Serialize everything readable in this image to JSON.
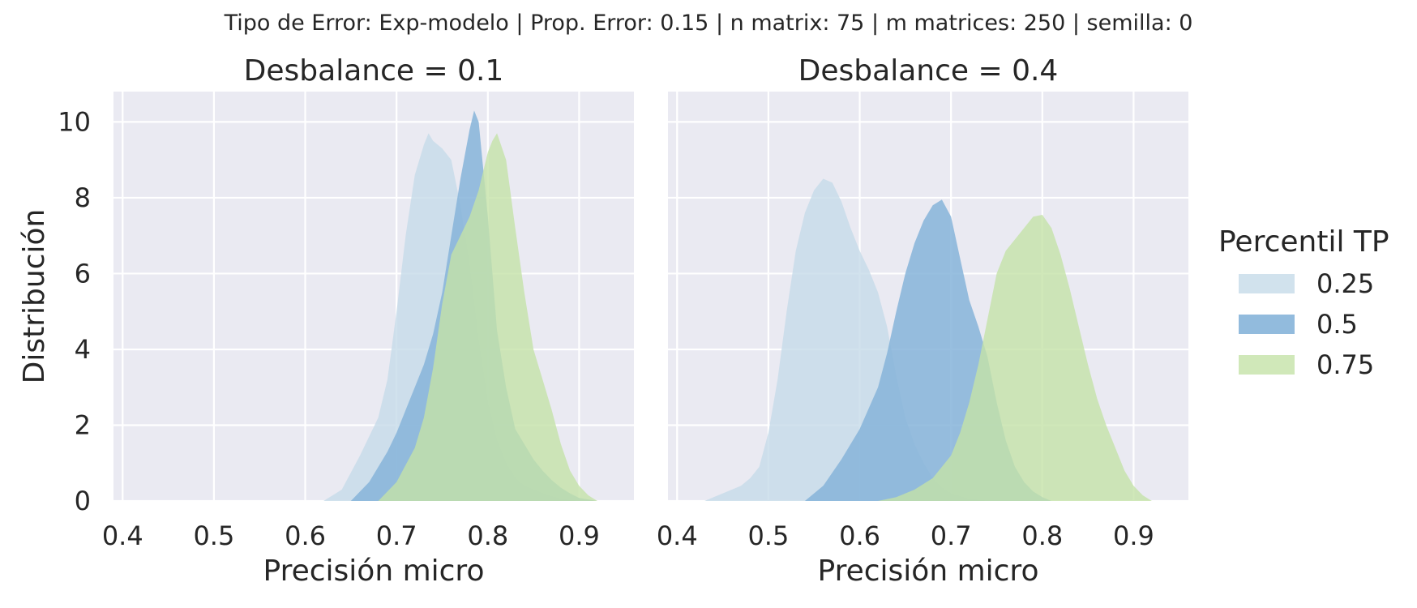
{
  "figure": {
    "suptitle": "Tipo de Error: Exp-modelo | Prop. Error: 0.15 | n matrix: 75 | m matrices: 250 | semilla: 0"
  },
  "legend": {
    "title": "Percentil TP",
    "entries": [
      "0.25",
      "0.5",
      "0.75"
    ]
  },
  "chart_data": [
    {
      "type": "area",
      "subtype": "kde",
      "title": "Desbalance = 0.1",
      "xlabel": "Precisión micro",
      "ylabel": "Distribución",
      "xlim": [
        0.39,
        0.96
      ],
      "ylim": [
        0,
        10.8
      ],
      "xticks": [
        0.4,
        0.5,
        0.6,
        0.7,
        0.8,
        0.9
      ],
      "xtick_labels": [
        "0.4",
        "0.5",
        "0.6",
        "0.7",
        "0.8",
        "0.9"
      ],
      "yticks": [
        0,
        2,
        4,
        6,
        8,
        10
      ],
      "ytick_labels": [
        "0",
        "2",
        "4",
        "6",
        "8",
        "10"
      ],
      "grid": true,
      "series": [
        {
          "name": "0.25",
          "color": "#c6dbe9",
          "x": [
            0.62,
            0.64,
            0.66,
            0.68,
            0.69,
            0.7,
            0.71,
            0.72,
            0.73,
            0.735,
            0.74,
            0.75,
            0.76,
            0.77,
            0.78,
            0.79,
            0.8,
            0.81,
            0.82,
            0.83,
            0.84,
            0.85,
            0.86,
            0.87,
            0.88,
            0.89,
            0.9
          ],
          "y": [
            0,
            0.3,
            1.2,
            2.2,
            3.2,
            5.0,
            7.0,
            8.6,
            9.4,
            9.7,
            9.5,
            9.3,
            9.0,
            7.8,
            6.2,
            4.2,
            2.6,
            1.6,
            1.0,
            0.6,
            0.4,
            0.3,
            0.2,
            0.12,
            0.06,
            0.02,
            0
          ]
        },
        {
          "name": "0.5",
          "color": "#86b4d9",
          "x": [
            0.65,
            0.67,
            0.69,
            0.7,
            0.71,
            0.72,
            0.73,
            0.74,
            0.75,
            0.76,
            0.77,
            0.78,
            0.785,
            0.79,
            0.8,
            0.81,
            0.82,
            0.83,
            0.84,
            0.85,
            0.86,
            0.87,
            0.88,
            0.89,
            0.9,
            0.92
          ],
          "y": [
            0,
            0.5,
            1.3,
            1.8,
            2.4,
            3.0,
            3.6,
            4.4,
            5.5,
            7.0,
            8.5,
            9.8,
            10.3,
            10.0,
            7.5,
            4.5,
            3.0,
            1.9,
            1.5,
            1.1,
            0.8,
            0.55,
            0.35,
            0.2,
            0.08,
            0
          ]
        },
        {
          "name": "0.75",
          "color": "#c4e2a8",
          "x": [
            0.68,
            0.7,
            0.72,
            0.73,
            0.74,
            0.75,
            0.76,
            0.77,
            0.78,
            0.79,
            0.8,
            0.805,
            0.81,
            0.82,
            0.83,
            0.84,
            0.85,
            0.86,
            0.87,
            0.88,
            0.89,
            0.9,
            0.91,
            0.92
          ],
          "y": [
            0,
            0.5,
            1.4,
            2.2,
            3.5,
            5.2,
            6.5,
            7.0,
            7.5,
            8.2,
            9.2,
            9.5,
            9.7,
            9.0,
            7.2,
            5.5,
            4.0,
            3.2,
            2.4,
            1.5,
            0.8,
            0.4,
            0.15,
            0
          ]
        }
      ]
    },
    {
      "type": "area",
      "subtype": "kde",
      "title": "Desbalance = 0.4",
      "xlabel": "Precisión micro",
      "ylabel": "",
      "xlim": [
        0.39,
        0.96
      ],
      "ylim": [
        0,
        10.8
      ],
      "xticks": [
        0.4,
        0.5,
        0.6,
        0.7,
        0.8,
        0.9
      ],
      "xtick_labels": [
        "0.4",
        "0.5",
        "0.6",
        "0.7",
        "0.8",
        "0.9"
      ],
      "yticks": [
        0,
        2,
        4,
        6,
        8,
        10
      ],
      "grid": true,
      "series": [
        {
          "name": "0.25",
          "color": "#c6dbe9",
          "x": [
            0.43,
            0.45,
            0.47,
            0.48,
            0.49,
            0.5,
            0.51,
            0.52,
            0.53,
            0.54,
            0.55,
            0.56,
            0.57,
            0.58,
            0.59,
            0.6,
            0.61,
            0.62,
            0.63,
            0.64,
            0.65,
            0.66,
            0.67,
            0.68,
            0.69,
            0.7,
            0.72,
            0.74
          ],
          "y": [
            0,
            0.2,
            0.4,
            0.6,
            0.9,
            1.8,
            3.2,
            5.0,
            6.6,
            7.6,
            8.2,
            8.5,
            8.4,
            7.9,
            7.2,
            6.6,
            6.1,
            5.5,
            4.6,
            3.3,
            2.2,
            1.5,
            1.0,
            0.6,
            0.35,
            0.2,
            0.05,
            0
          ]
        },
        {
          "name": "0.5",
          "color": "#86b4d9",
          "x": [
            0.54,
            0.56,
            0.58,
            0.6,
            0.62,
            0.63,
            0.64,
            0.65,
            0.66,
            0.67,
            0.68,
            0.69,
            0.7,
            0.71,
            0.72,
            0.73,
            0.74,
            0.75,
            0.76,
            0.77,
            0.78,
            0.79,
            0.8,
            0.81
          ],
          "y": [
            0,
            0.4,
            1.1,
            1.9,
            3.0,
            3.9,
            5.0,
            6.0,
            6.8,
            7.4,
            7.8,
            7.95,
            7.5,
            6.4,
            5.3,
            4.6,
            3.8,
            2.6,
            1.6,
            0.9,
            0.5,
            0.25,
            0.1,
            0
          ]
        },
        {
          "name": "0.75",
          "color": "#c4e2a8",
          "x": [
            0.62,
            0.64,
            0.66,
            0.68,
            0.7,
            0.71,
            0.72,
            0.73,
            0.74,
            0.75,
            0.76,
            0.77,
            0.78,
            0.79,
            0.8,
            0.81,
            0.82,
            0.83,
            0.84,
            0.85,
            0.86,
            0.87,
            0.88,
            0.89,
            0.9,
            0.91,
            0.92
          ],
          "y": [
            0,
            0.1,
            0.3,
            0.6,
            1.2,
            1.8,
            2.6,
            3.6,
            4.8,
            6.0,
            6.6,
            6.9,
            7.2,
            7.5,
            7.55,
            7.2,
            6.5,
            5.6,
            4.6,
            3.6,
            2.7,
            2.0,
            1.4,
            0.8,
            0.4,
            0.15,
            0
          ]
        }
      ]
    }
  ]
}
